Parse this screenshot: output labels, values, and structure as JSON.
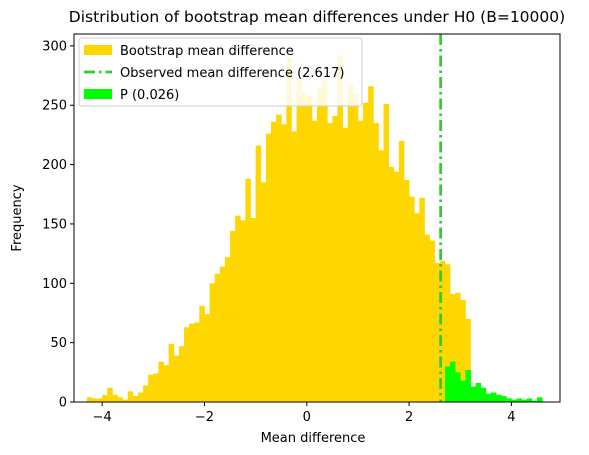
{
  "chart_data": {
    "type": "histogram",
    "title": "Distribution of bootstrap mean differences under H0 (B=10000)",
    "xlabel": "Mean difference",
    "ylabel": "Frequency",
    "xlim": [
      -4.55,
      4.95
    ],
    "ylim": [
      0,
      310
    ],
    "xticks": [
      -4,
      -2,
      0,
      2,
      4
    ],
    "yticks": [
      0,
      50,
      100,
      150,
      200,
      250,
      300
    ],
    "grid": false,
    "legend_position": "top-left",
    "observed_value": 2.617,
    "bin_width": 0.1,
    "bins": {
      "bootstrap_start": -4.3,
      "bootstrap_counts": [
        4,
        3,
        3,
        6,
        12,
        6,
        4,
        2,
        9,
        5,
        8,
        14,
        23,
        24,
        34,
        31,
        49,
        39,
        47,
        63,
        66,
        67,
        81,
        74,
        100,
        108,
        114,
        122,
        144,
        157,
        153,
        188,
        155,
        216,
        185,
        226,
        236,
        242,
        234,
        290,
        228,
        271,
        261,
        258,
        237,
        265,
        272,
        235,
        241,
        292,
        231,
        268,
        259,
        237,
        252,
        266,
        235,
        212,
        251,
        198,
        194,
        220,
        187,
        173,
        159,
        172,
        141,
        136,
        117,
        119,
        116,
        91,
        92,
        86,
        70
      ],
      "p_start": 2.7,
      "p_counts": [
        30,
        34,
        25,
        18,
        27,
        13,
        16,
        12,
        7,
        8,
        6,
        5,
        3,
        2,
        3,
        2,
        3,
        1,
        4
      ]
    },
    "series": [
      {
        "name": "Bootstrap mean difference",
        "color": "#ffd700"
      },
      {
        "name": "Observed mean difference (2.617)",
        "color": "#32cd32"
      },
      {
        "name": "P (0.026)",
        "color": "#00ff00"
      }
    ]
  }
}
